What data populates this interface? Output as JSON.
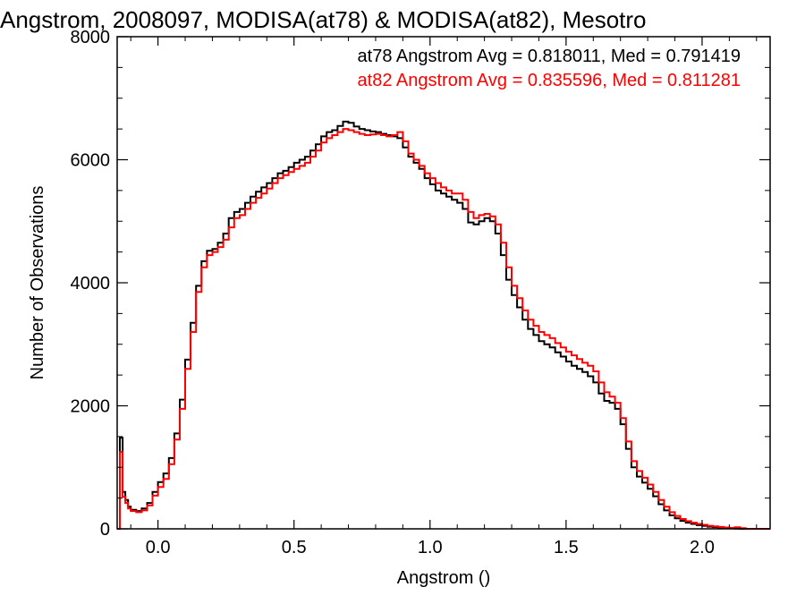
{
  "chart_data": {
    "type": "line",
    "style": "step",
    "title": "Angstrom, 2008097, MODISA(at78) & MODISA(at82), Mesotro",
    "xlabel": "Angstrom ()",
    "ylabel": "Number of Observations",
    "xlim": [
      -0.15,
      2.25
    ],
    "ylim": [
      0,
      8000
    ],
    "x_ticks": [
      "0.0",
      "0.5",
      "1.0",
      "1.5",
      "2.0"
    ],
    "y_ticks": [
      "0",
      "2000",
      "4000",
      "6000",
      "8000"
    ],
    "grid": false,
    "legend_position": "top-right",
    "annotations": [
      "at78 Angstrom Avg = 0.818011, Med = 0.791419",
      "at82 Angstrom Avg = 0.835596, Med = 0.811281"
    ],
    "series": [
      {
        "name": "at78",
        "color": "#000000",
        "points": [
          [
            -0.15,
            0
          ],
          [
            -0.14,
            1480
          ],
          [
            -0.13,
            600
          ],
          [
            -0.12,
            470
          ],
          [
            -0.11,
            360
          ],
          [
            -0.1,
            310
          ],
          [
            -0.08,
            290
          ],
          [
            -0.06,
            330
          ],
          [
            -0.04,
            420
          ],
          [
            -0.02,
            600
          ],
          [
            0.0,
            760
          ],
          [
            0.02,
            900
          ],
          [
            0.04,
            1150
          ],
          [
            0.06,
            1550
          ],
          [
            0.08,
            2100
          ],
          [
            0.1,
            2750
          ],
          [
            0.12,
            3350
          ],
          [
            0.14,
            3950
          ],
          [
            0.16,
            4350
          ],
          [
            0.18,
            4520
          ],
          [
            0.2,
            4550
          ],
          [
            0.22,
            4650
          ],
          [
            0.24,
            4800
          ],
          [
            0.26,
            5050
          ],
          [
            0.28,
            5150
          ],
          [
            0.3,
            5200
          ],
          [
            0.32,
            5300
          ],
          [
            0.34,
            5400
          ],
          [
            0.36,
            5480
          ],
          [
            0.38,
            5550
          ],
          [
            0.4,
            5620
          ],
          [
            0.42,
            5700
          ],
          [
            0.44,
            5780
          ],
          [
            0.46,
            5820
          ],
          [
            0.48,
            5880
          ],
          [
            0.5,
            5950
          ],
          [
            0.52,
            6000
          ],
          [
            0.54,
            6050
          ],
          [
            0.56,
            6150
          ],
          [
            0.58,
            6250
          ],
          [
            0.6,
            6380
          ],
          [
            0.62,
            6450
          ],
          [
            0.64,
            6480
          ],
          [
            0.66,
            6550
          ],
          [
            0.68,
            6620
          ],
          [
            0.7,
            6600
          ],
          [
            0.72,
            6540
          ],
          [
            0.74,
            6500
          ],
          [
            0.76,
            6480
          ],
          [
            0.78,
            6460
          ],
          [
            0.8,
            6450
          ],
          [
            0.82,
            6420
          ],
          [
            0.84,
            6400
          ],
          [
            0.86,
            6380
          ],
          [
            0.88,
            6350
          ],
          [
            0.9,
            6200
          ],
          [
            0.92,
            6050
          ],
          [
            0.94,
            5950
          ],
          [
            0.96,
            5850
          ],
          [
            0.98,
            5700
          ],
          [
            1.0,
            5600
          ],
          [
            1.02,
            5500
          ],
          [
            1.04,
            5450
          ],
          [
            1.06,
            5400
          ],
          [
            1.08,
            5350
          ],
          [
            1.1,
            5300
          ],
          [
            1.12,
            5200
          ],
          [
            1.14,
            4980
          ],
          [
            1.16,
            4950
          ],
          [
            1.18,
            5000
          ],
          [
            1.2,
            5050
          ],
          [
            1.22,
            5000
          ],
          [
            1.24,
            4800
          ],
          [
            1.26,
            4450
          ],
          [
            1.28,
            4050
          ],
          [
            1.3,
            3800
          ],
          [
            1.32,
            3600
          ],
          [
            1.34,
            3400
          ],
          [
            1.36,
            3250
          ],
          [
            1.38,
            3150
          ],
          [
            1.4,
            3050
          ],
          [
            1.42,
            3000
          ],
          [
            1.44,
            2950
          ],
          [
            1.46,
            2870
          ],
          [
            1.48,
            2800
          ],
          [
            1.5,
            2720
          ],
          [
            1.52,
            2650
          ],
          [
            1.54,
            2600
          ],
          [
            1.56,
            2550
          ],
          [
            1.58,
            2480
          ],
          [
            1.6,
            2380
          ],
          [
            1.62,
            2200
          ],
          [
            1.64,
            2080
          ],
          [
            1.66,
            2050
          ],
          [
            1.68,
            1950
          ],
          [
            1.7,
            1700
          ],
          [
            1.72,
            1300
          ],
          [
            1.74,
            1000
          ],
          [
            1.76,
            850
          ],
          [
            1.78,
            750
          ],
          [
            1.8,
            650
          ],
          [
            1.82,
            530
          ],
          [
            1.84,
            400
          ],
          [
            1.86,
            300
          ],
          [
            1.88,
            220
          ],
          [
            1.9,
            170
          ],
          [
            1.92,
            130
          ],
          [
            1.94,
            100
          ],
          [
            1.96,
            80
          ],
          [
            1.98,
            60
          ],
          [
            2.0,
            50
          ],
          [
            2.02,
            35
          ],
          [
            2.04,
            28
          ],
          [
            2.06,
            20
          ],
          [
            2.08,
            14
          ],
          [
            2.1,
            8
          ],
          [
            2.12,
            3
          ],
          [
            2.14,
            0
          ]
        ]
      },
      {
        "name": "at82",
        "color": "#ff0000",
        "points": [
          [
            -0.15,
            0
          ],
          [
            -0.14,
            1250
          ],
          [
            -0.13,
            520
          ],
          [
            -0.12,
            420
          ],
          [
            -0.11,
            330
          ],
          [
            -0.1,
            290
          ],
          [
            -0.08,
            270
          ],
          [
            -0.06,
            300
          ],
          [
            -0.04,
            380
          ],
          [
            -0.02,
            540
          ],
          [
            0.0,
            680
          ],
          [
            0.02,
            810
          ],
          [
            0.04,
            1050
          ],
          [
            0.06,
            1450
          ],
          [
            0.08,
            1950
          ],
          [
            0.1,
            2600
          ],
          [
            0.12,
            3200
          ],
          [
            0.14,
            3850
          ],
          [
            0.16,
            4250
          ],
          [
            0.18,
            4450
          ],
          [
            0.2,
            4500
          ],
          [
            0.22,
            4580
          ],
          [
            0.24,
            4700
          ],
          [
            0.26,
            4900
          ],
          [
            0.28,
            5050
          ],
          [
            0.3,
            5100
          ],
          [
            0.32,
            5200
          ],
          [
            0.34,
            5300
          ],
          [
            0.36,
            5380
          ],
          [
            0.38,
            5450
          ],
          [
            0.4,
            5530
          ],
          [
            0.42,
            5620
          ],
          [
            0.44,
            5700
          ],
          [
            0.46,
            5750
          ],
          [
            0.48,
            5800
          ],
          [
            0.5,
            5850
          ],
          [
            0.52,
            5900
          ],
          [
            0.54,
            5950
          ],
          [
            0.56,
            6050
          ],
          [
            0.58,
            6150
          ],
          [
            0.6,
            6280
          ],
          [
            0.62,
            6350
          ],
          [
            0.64,
            6400
          ],
          [
            0.66,
            6450
          ],
          [
            0.68,
            6500
          ],
          [
            0.7,
            6480
          ],
          [
            0.72,
            6450
          ],
          [
            0.74,
            6420
          ],
          [
            0.76,
            6400
          ],
          [
            0.78,
            6410
          ],
          [
            0.8,
            6420
          ],
          [
            0.82,
            6400
          ],
          [
            0.84,
            6380
          ],
          [
            0.86,
            6400
          ],
          [
            0.88,
            6450
          ],
          [
            0.9,
            6300
          ],
          [
            0.92,
            6100
          ],
          [
            0.94,
            6000
          ],
          [
            0.96,
            5900
          ],
          [
            0.98,
            5780
          ],
          [
            1.0,
            5700
          ],
          [
            1.02,
            5620
          ],
          [
            1.04,
            5550
          ],
          [
            1.06,
            5500
          ],
          [
            1.08,
            5450
          ],
          [
            1.1,
            5450
          ],
          [
            1.12,
            5350
          ],
          [
            1.14,
            5150
          ],
          [
            1.16,
            5050
          ],
          [
            1.18,
            5100
          ],
          [
            1.2,
            5120
          ],
          [
            1.22,
            5080
          ],
          [
            1.24,
            4950
          ],
          [
            1.26,
            4650
          ],
          [
            1.28,
            4250
          ],
          [
            1.3,
            3950
          ],
          [
            1.32,
            3750
          ],
          [
            1.34,
            3550
          ],
          [
            1.36,
            3400
          ],
          [
            1.38,
            3300
          ],
          [
            1.4,
            3200
          ],
          [
            1.42,
            3150
          ],
          [
            1.44,
            3100
          ],
          [
            1.46,
            3020
          ],
          [
            1.48,
            2950
          ],
          [
            1.5,
            2880
          ],
          [
            1.52,
            2820
          ],
          [
            1.54,
            2760
          ],
          [
            1.56,
            2700
          ],
          [
            1.58,
            2650
          ],
          [
            1.6,
            2560
          ],
          [
            1.62,
            2380
          ],
          [
            1.64,
            2220
          ],
          [
            1.66,
            2150
          ],
          [
            1.68,
            2050
          ],
          [
            1.7,
            1800
          ],
          [
            1.72,
            1420
          ],
          [
            1.74,
            1100
          ],
          [
            1.76,
            940
          ],
          [
            1.78,
            830
          ],
          [
            1.8,
            720
          ],
          [
            1.82,
            600
          ],
          [
            1.84,
            470
          ],
          [
            1.86,
            360
          ],
          [
            1.88,
            270
          ],
          [
            1.9,
            210
          ],
          [
            1.92,
            160
          ],
          [
            1.94,
            125
          ],
          [
            1.96,
            100
          ],
          [
            1.98,
            80
          ],
          [
            2.0,
            65
          ],
          [
            2.02,
            50
          ],
          [
            2.04,
            40
          ],
          [
            2.06,
            30
          ],
          [
            2.08,
            22
          ],
          [
            2.1,
            15
          ],
          [
            2.12,
            25
          ],
          [
            2.14,
            10
          ],
          [
            2.16,
            0
          ]
        ]
      }
    ]
  }
}
